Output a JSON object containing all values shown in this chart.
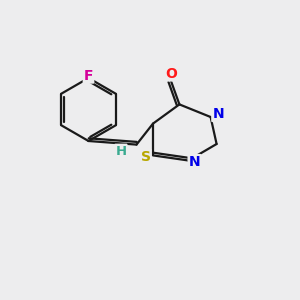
{
  "bg_color": "#ededee",
  "bond_color": "#1a1a1a",
  "atom_colors": {
    "F": "#d4009a",
    "O": "#ff1a1a",
    "N": "#0000e8",
    "S": "#b8a800",
    "H": "#3aaa90",
    "C": "#1a1a1a"
  },
  "figsize": [
    3.0,
    3.0
  ],
  "dpi": 100,
  "lw": 1.6
}
